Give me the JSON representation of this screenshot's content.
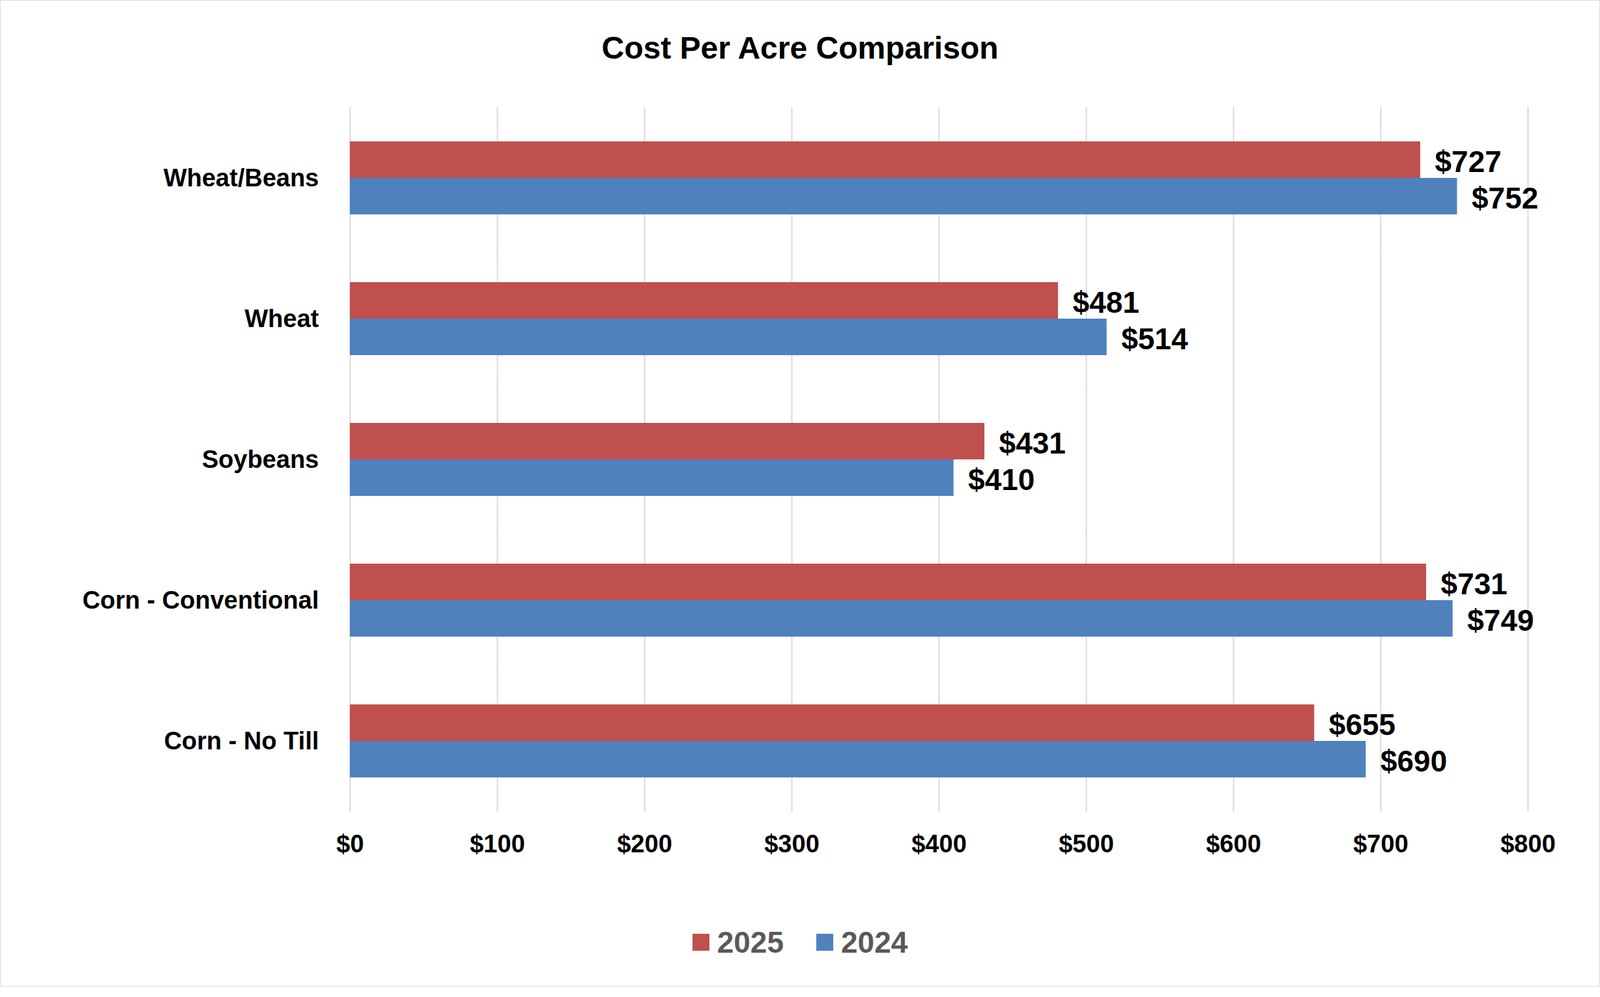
{
  "chart_data": {
    "type": "bar",
    "title": "Cost Per Acre Comparison",
    "orientation": "horizontal",
    "categories": [
      "Wheat/Beans",
      "Wheat",
      "Soybeans",
      "Corn - Conventional",
      "Corn - No Till"
    ],
    "series": [
      {
        "name": "2025",
        "color": "#c0504d",
        "values": [
          727,
          481,
          431,
          731,
          655
        ],
        "value_labels": [
          "$727",
          "$481",
          "$431",
          "$731",
          "$655"
        ]
      },
      {
        "name": "2024",
        "color": "#4f81bd",
        "values": [
          752,
          514,
          410,
          749,
          690
        ],
        "value_labels": [
          "$752",
          "$514",
          "$410",
          "$749",
          "$690"
        ]
      }
    ],
    "xlim": [
      0,
      800
    ],
    "xticks": [
      {
        "value": 0,
        "label": "$0"
      },
      {
        "value": 100,
        "label": "$100"
      },
      {
        "value": 200,
        "label": "$200"
      },
      {
        "value": 300,
        "label": "$300"
      },
      {
        "value": 400,
        "label": "$400"
      },
      {
        "value": 500,
        "label": "$500"
      },
      {
        "value": 600,
        "label": "$600"
      },
      {
        "value": 700,
        "label": "$700"
      },
      {
        "value": 800,
        "label": "$800"
      }
    ],
    "grid": true,
    "legend": "bottom",
    "data_labels": true
  }
}
